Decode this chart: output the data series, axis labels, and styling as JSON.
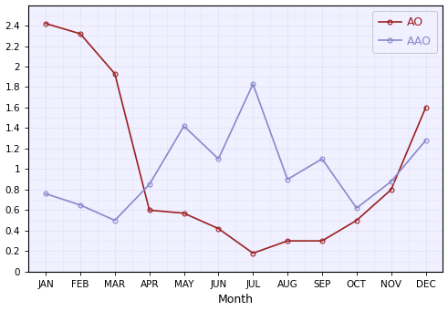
{
  "months": [
    "JAN",
    "FEB",
    "MAR",
    "APR",
    "MAY",
    "JUN",
    "JUL",
    "AUG",
    "SEP",
    "OCT",
    "NOV",
    "DEC"
  ],
  "AO": [
    2.42,
    2.32,
    1.93,
    0.6,
    0.57,
    0.42,
    0.18,
    0.3,
    0.3,
    0.5,
    0.8,
    1.6
  ],
  "AAO": [
    0.76,
    0.65,
    0.5,
    0.85,
    1.42,
    1.1,
    1.83,
    0.9,
    1.1,
    0.62,
    0.88,
    1.28
  ],
  "AO_color": "#9B2020",
  "AAO_color": "#8888CC",
  "xlabel": "Month",
  "ylim": [
    0,
    2.6
  ],
  "ytick_vals": [
    0,
    0.2,
    0.4,
    0.6,
    0.8,
    1.0,
    1.2,
    1.4,
    1.6,
    1.8,
    2.0,
    2.2,
    2.4
  ],
  "ytick_labels": [
    "0",
    "0.2",
    "0.4",
    "0.6",
    "0.8",
    "1",
    "1.2",
    "1.4",
    "1.6",
    "1.8",
    "2",
    "2.2",
    "2.4"
  ],
  "plot_bg": "#F0F0FF",
  "fig_bg": "#FFFFFF",
  "grid_color": "#CCCCEE",
  "legend_AO": "AO",
  "legend_AAO": "AAO",
  "marker": "o",
  "marker_size": 3.5,
  "linewidth": 1.2
}
